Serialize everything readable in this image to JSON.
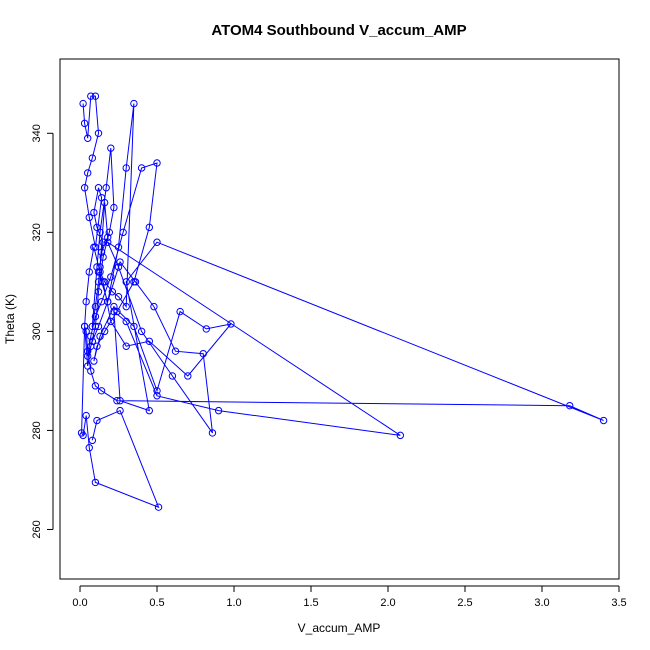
{
  "chart_data": {
    "type": "line",
    "title": "ATOM4 Southbound V_accum_AMP",
    "xlabel": "V_accum_AMP",
    "ylabel": "Theta (K)",
    "xlim": [
      -0.13,
      3.5
    ],
    "ylim": [
      250,
      355
    ],
    "x_ticks": [
      0.0,
      0.5,
      1.0,
      1.5,
      2.0,
      2.5,
      3.0,
      3.5
    ],
    "x_tick_labels": [
      "0.0",
      "0.5",
      "1.0",
      "1.5",
      "2.0",
      "2.5",
      "3.0",
      "3.5"
    ],
    "y_ticks": [
      260,
      280,
      300,
      320,
      340
    ],
    "y_tick_labels": [
      "260",
      "280",
      "300",
      "320",
      "340"
    ],
    "grid": false,
    "legend": "none",
    "color": "#0000ff",
    "markers": "open-circle",
    "series": [
      {
        "x": [
          0.02,
          0.03,
          0.05,
          0.07,
          0.1,
          0.12,
          0.08,
          0.05,
          0.03,
          0.06,
          0.1,
          0.14,
          0.12,
          0.09,
          0.11,
          0.15,
          0.13,
          0.16,
          0.18,
          0.14,
          0.12,
          0.1,
          0.08,
          0.11,
          0.13,
          0.17,
          0.2,
          0.22,
          0.19,
          0.15,
          0.12,
          0.1,
          0.07,
          0.05,
          0.03,
          0.04,
          0.06,
          0.09,
          0.13,
          0.16,
          0.21,
          0.25,
          0.3,
          0.35,
          0.3,
          0.25,
          0.18,
          0.12,
          0.08,
          0.05,
          0.07,
          0.1,
          0.14,
          0.2,
          0.28,
          0.4,
          0.5,
          0.45,
          0.35,
          0.24,
          0.16,
          0.11,
          0.09,
          0.13,
          0.22,
          0.35,
          0.5,
          0.65,
          0.82,
          0.98,
          0.7,
          0.45,
          0.3,
          0.2,
          0.15,
          0.12,
          0.18,
          0.26,
          0.36,
          0.48,
          0.62,
          0.8,
          0.86,
          0.6,
          0.4,
          0.25,
          0.18,
          2.08,
          0.9,
          0.5,
          0.3,
          0.22,
          0.26,
          0.45,
          0.3,
          0.5,
          3.4,
          3.18,
          0.24,
          0.14,
          0.1,
          0.07,
          0.05,
          0.04,
          0.03,
          0.01,
          0.02,
          0.04,
          0.06,
          0.1,
          0.51,
          0.26,
          0.11,
          0.08
        ],
        "y": [
          346,
          342,
          339,
          347.5,
          347.5,
          340,
          335,
          332,
          329,
          323,
          317,
          327,
          329,
          324,
          321,
          318,
          313,
          326,
          319,
          316,
          310,
          305,
          301,
          313,
          320,
          329,
          337,
          325,
          320,
          315,
          308,
          301,
          297,
          293,
          301,
          306,
          312,
          317,
          312,
          310,
          308,
          307,
          305,
          346,
          333,
          317,
          306,
          301,
          298,
          295,
          299,
          303,
          306,
          311,
          320,
          333,
          334,
          321,
          310,
          304,
          300,
          297,
          294,
          299,
          305,
          301,
          288,
          304,
          300.5,
          301.5,
          291,
          298,
          297,
          302,
          310,
          312,
          306,
          314,
          310,
          305,
          296,
          295.5,
          279.5,
          291,
          300,
          313,
          318,
          279,
          284,
          287,
          302,
          304,
          286,
          284,
          310,
          318,
          282,
          285,
          286,
          288,
          289,
          292,
          296,
          300,
          301,
          279.5,
          279,
          283,
          276.5,
          269.5,
          264.5,
          284,
          282,
          278
        ]
      }
    ]
  }
}
